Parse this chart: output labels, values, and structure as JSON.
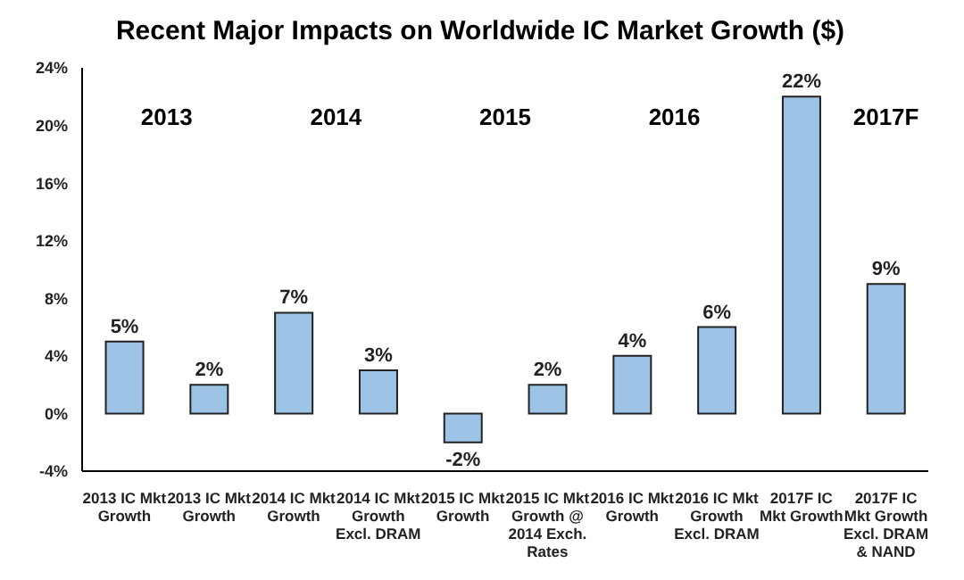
{
  "chart_data": {
    "type": "bar",
    "title": "Recent Major Impacts on Worldwide IC Market Growth ($)",
    "categories": [
      "2013 IC Mkt Growth",
      "2013 IC Mkt Growth",
      "2014 IC Mkt Growth",
      "2014 IC Mkt Growth Excl. DRAM",
      "2015 IC Mkt Growth",
      "2015 IC Mkt Growth @ 2014 Exch. Rates",
      "2016 IC Mkt Growth",
      "2016 IC Mkt Growth Excl. DRAM",
      "2017F IC Mkt Growth",
      "2017F IC Mkt Growth Excl. DRAM & NAND"
    ],
    "values": [
      5,
      2,
      7,
      3,
      -2,
      2,
      4,
      6,
      22,
      9
    ],
    "value_labels": [
      "5%",
      "2%",
      "7%",
      "3%",
      "-2%",
      "2%",
      "4%",
      "6%",
      "22%",
      "9%"
    ],
    "color": "#9dc3e6",
    "ylim": [
      -4,
      24
    ],
    "yticks": [
      {
        "value": -4,
        "label": "-4%"
      },
      {
        "value": 0,
        "label": "0%"
      },
      {
        "value": 4,
        "label": "4%"
      },
      {
        "value": 8,
        "label": "8%"
      },
      {
        "value": 12,
        "label": "12%"
      },
      {
        "value": 16,
        "label": "16%"
      },
      {
        "value": 20,
        "label": "20%"
      },
      {
        "value": 24,
        "label": "24%"
      }
    ],
    "annotations": [
      "2013",
      "2014",
      "2015",
      "2016",
      "2017F"
    ],
    "grid": false,
    "legend": false
  }
}
